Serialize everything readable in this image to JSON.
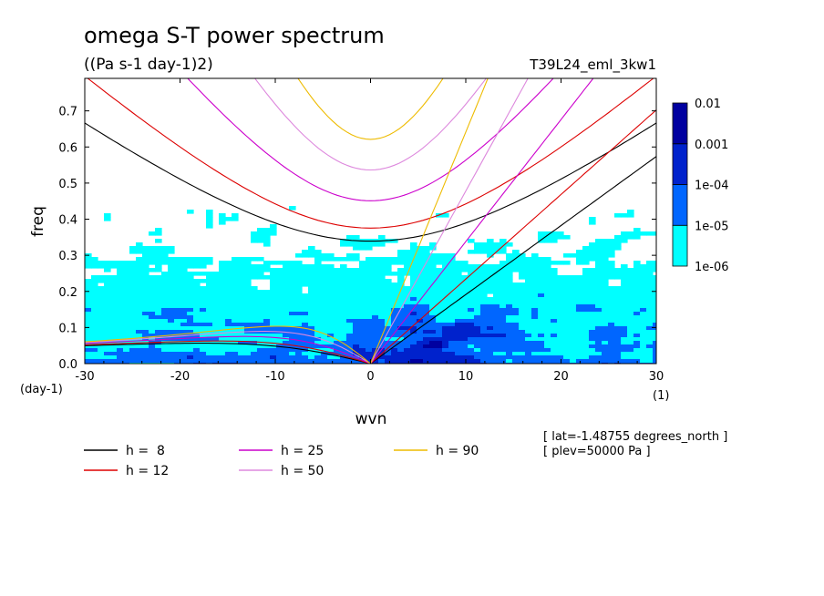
{
  "chart_data": {
    "type": "heatmap",
    "title": "omega S-T power spectrum",
    "subtitle": "((Pa s-1 day-1)2)",
    "run_label": "T39L24_eml_3kw1",
    "xlabel": "wvn",
    "ylabel": "freq",
    "x_unit": "(1)",
    "y_unit": "(day-1)",
    "xlim": [
      -30,
      30
    ],
    "ylim": [
      0,
      0.79
    ],
    "x_ticks": [
      -30,
      -20,
      -10,
      0,
      10,
      20,
      30
    ],
    "y_ticks": [
      0.0,
      0.1,
      0.2,
      0.3,
      0.4,
      0.5,
      0.6,
      0.7
    ],
    "x_tick_labels": [
      "-30",
      "-20",
      "-10",
      "0",
      "10",
      "20",
      "30"
    ],
    "y_tick_labels": [
      "0.0",
      "0.1",
      "0.2",
      "0.3",
      "0.4",
      "0.5",
      "0.6",
      "0.7"
    ],
    "grid": false,
    "colorbar": {
      "levels": [
        "1e-06",
        "1e-05",
        "1e-04",
        "0.001",
        "0.01"
      ],
      "colors": [
        "#00ffff",
        "#0066ff",
        "#0022cc",
        "#0000a0",
        "#4b0096"
      ]
    },
    "dispersion_curves": [
      {
        "label": "h =  8",
        "h": 8,
        "color": "#000000"
      },
      {
        "label": "h = 12",
        "h": 12,
        "color": "#dd0000"
      },
      {
        "label": "h = 25",
        "h": 25,
        "color": "#cc00cc"
      },
      {
        "label": "h = 50",
        "h": 50,
        "color": "#dd88dd"
      },
      {
        "label": "h = 90",
        "h": 90,
        "color": "#eebb00"
      }
    ],
    "annotations": [
      "[ lat=-1.48755 degrees_north ]",
      "[ plev=50000 Pa ]"
    ]
  }
}
